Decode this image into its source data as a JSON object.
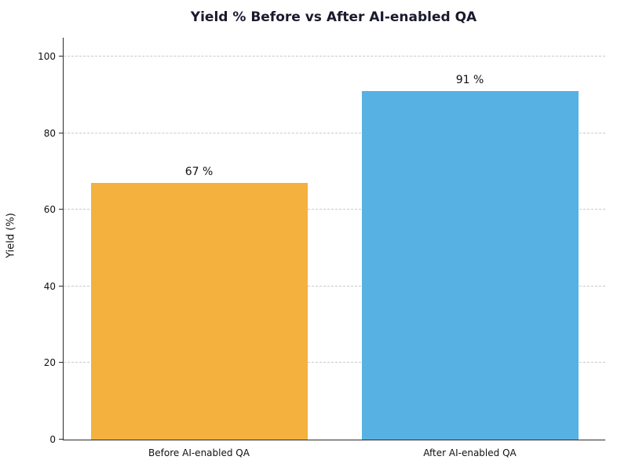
{
  "chart_data": {
    "type": "bar",
    "title": "Yield % Before vs After AI-enabled QA",
    "categories": [
      "Before AI-enabled QA",
      "After AI-enabled QA"
    ],
    "values": [
      67,
      91
    ],
    "value_labels": [
      "67 %",
      "91 %"
    ],
    "bar_colors": [
      "#f4b13e",
      "#57b1e3"
    ],
    "xlabel": "",
    "ylabel": "Yield (%)",
    "ylim": [
      0,
      105
    ],
    "yticks": [
      0,
      20,
      40,
      60,
      80,
      100
    ],
    "grid": "horizontal dashed gridlines",
    "legend": "none",
    "background_color": "#ffffff",
    "axis_color": "#2b2b2b"
  }
}
